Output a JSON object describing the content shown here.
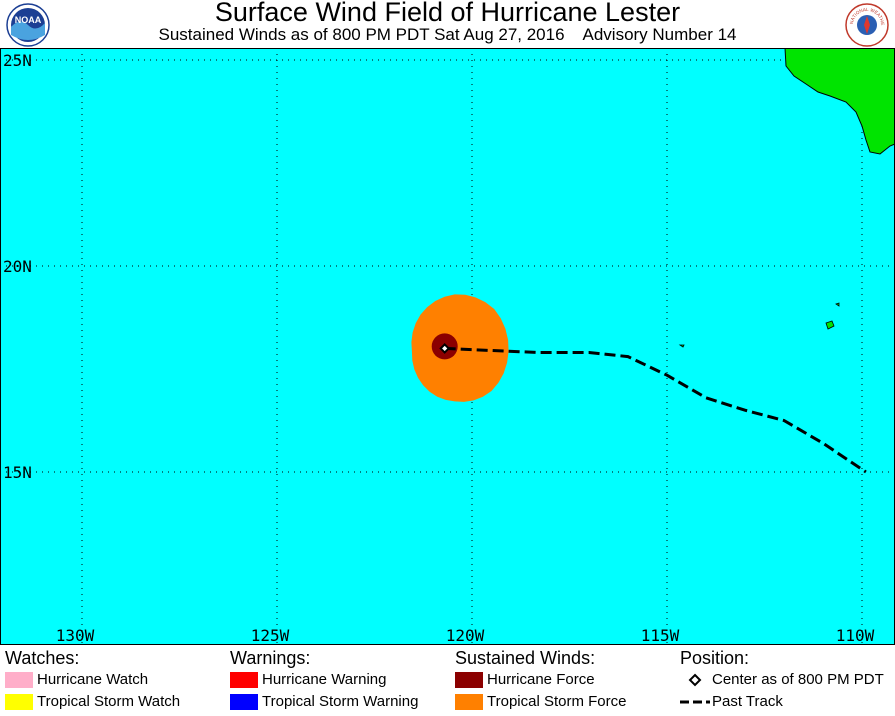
{
  "header": {
    "title": "Surface Wind Field of Hurricane Lester",
    "subtitle": "Sustained Winds as of 800 PM PDT Sat Aug 27, 2016    Advisory Number 14",
    "left_logo_text": "NOAA",
    "right_logo_text": "NATIONAL WEATHER SERVICE"
  },
  "map": {
    "ocean_color": "#00ffff",
    "land_color": "#00e400",
    "lat_labels": [
      {
        "lat": 25,
        "label": "25N"
      },
      {
        "lat": 20,
        "label": "20N"
      },
      {
        "lat": 15,
        "label": "15N"
      }
    ],
    "lon_labels": [
      {
        "lon": -130,
        "label": "130W"
      },
      {
        "lon": -125,
        "label": "125W"
      },
      {
        "lon": -120,
        "label": "120W"
      },
      {
        "lon": -115,
        "label": "115W"
      },
      {
        "lon": -110,
        "label": "110W"
      }
    ],
    "storm_center": {
      "lat": 18.0,
      "lon": -120.7
    },
    "past_track": [
      {
        "lat": 18.0,
        "lon": -120.7
      },
      {
        "lat": 17.95,
        "lon": -119.5
      },
      {
        "lat": 17.9,
        "lon": -118.3
      },
      {
        "lat": 17.9,
        "lon": -117.0
      },
      {
        "lat": 17.8,
        "lon": -116.0
      },
      {
        "lat": 17.35,
        "lon": -115.0
      },
      {
        "lat": 16.8,
        "lon": -114.0
      },
      {
        "lat": 16.5,
        "lon": -113.0
      },
      {
        "lat": 16.25,
        "lon": -112.0
      },
      {
        "lat": 15.7,
        "lon": -111.0
      },
      {
        "lat": 15.0,
        "lon": -109.9
      }
    ],
    "tropical_storm_force_color": "#ff8000",
    "hurricane_force_color": "#8b0000"
  },
  "legend": {
    "watches": {
      "heading": "Watches:",
      "items": [
        {
          "label": "Hurricane Watch",
          "color": "#ffaec9"
        },
        {
          "label": "Tropical Storm Watch",
          "color": "#ffff00"
        }
      ]
    },
    "warnings": {
      "heading": "Warnings:",
      "items": [
        {
          "label": "Hurricane Warning",
          "color": "#ff0000"
        },
        {
          "label": "Tropical Storm Warning",
          "color": "#0000ff"
        }
      ]
    },
    "winds": {
      "heading": "Sustained Winds:",
      "items": [
        {
          "label": "Hurricane Force",
          "color": "#8b0000"
        },
        {
          "label": "Tropical Storm Force",
          "color": "#ff8000"
        }
      ]
    },
    "position": {
      "heading": "Position:",
      "center_label": "Center as of 800 PM PDT",
      "track_label": "Past Track"
    }
  }
}
